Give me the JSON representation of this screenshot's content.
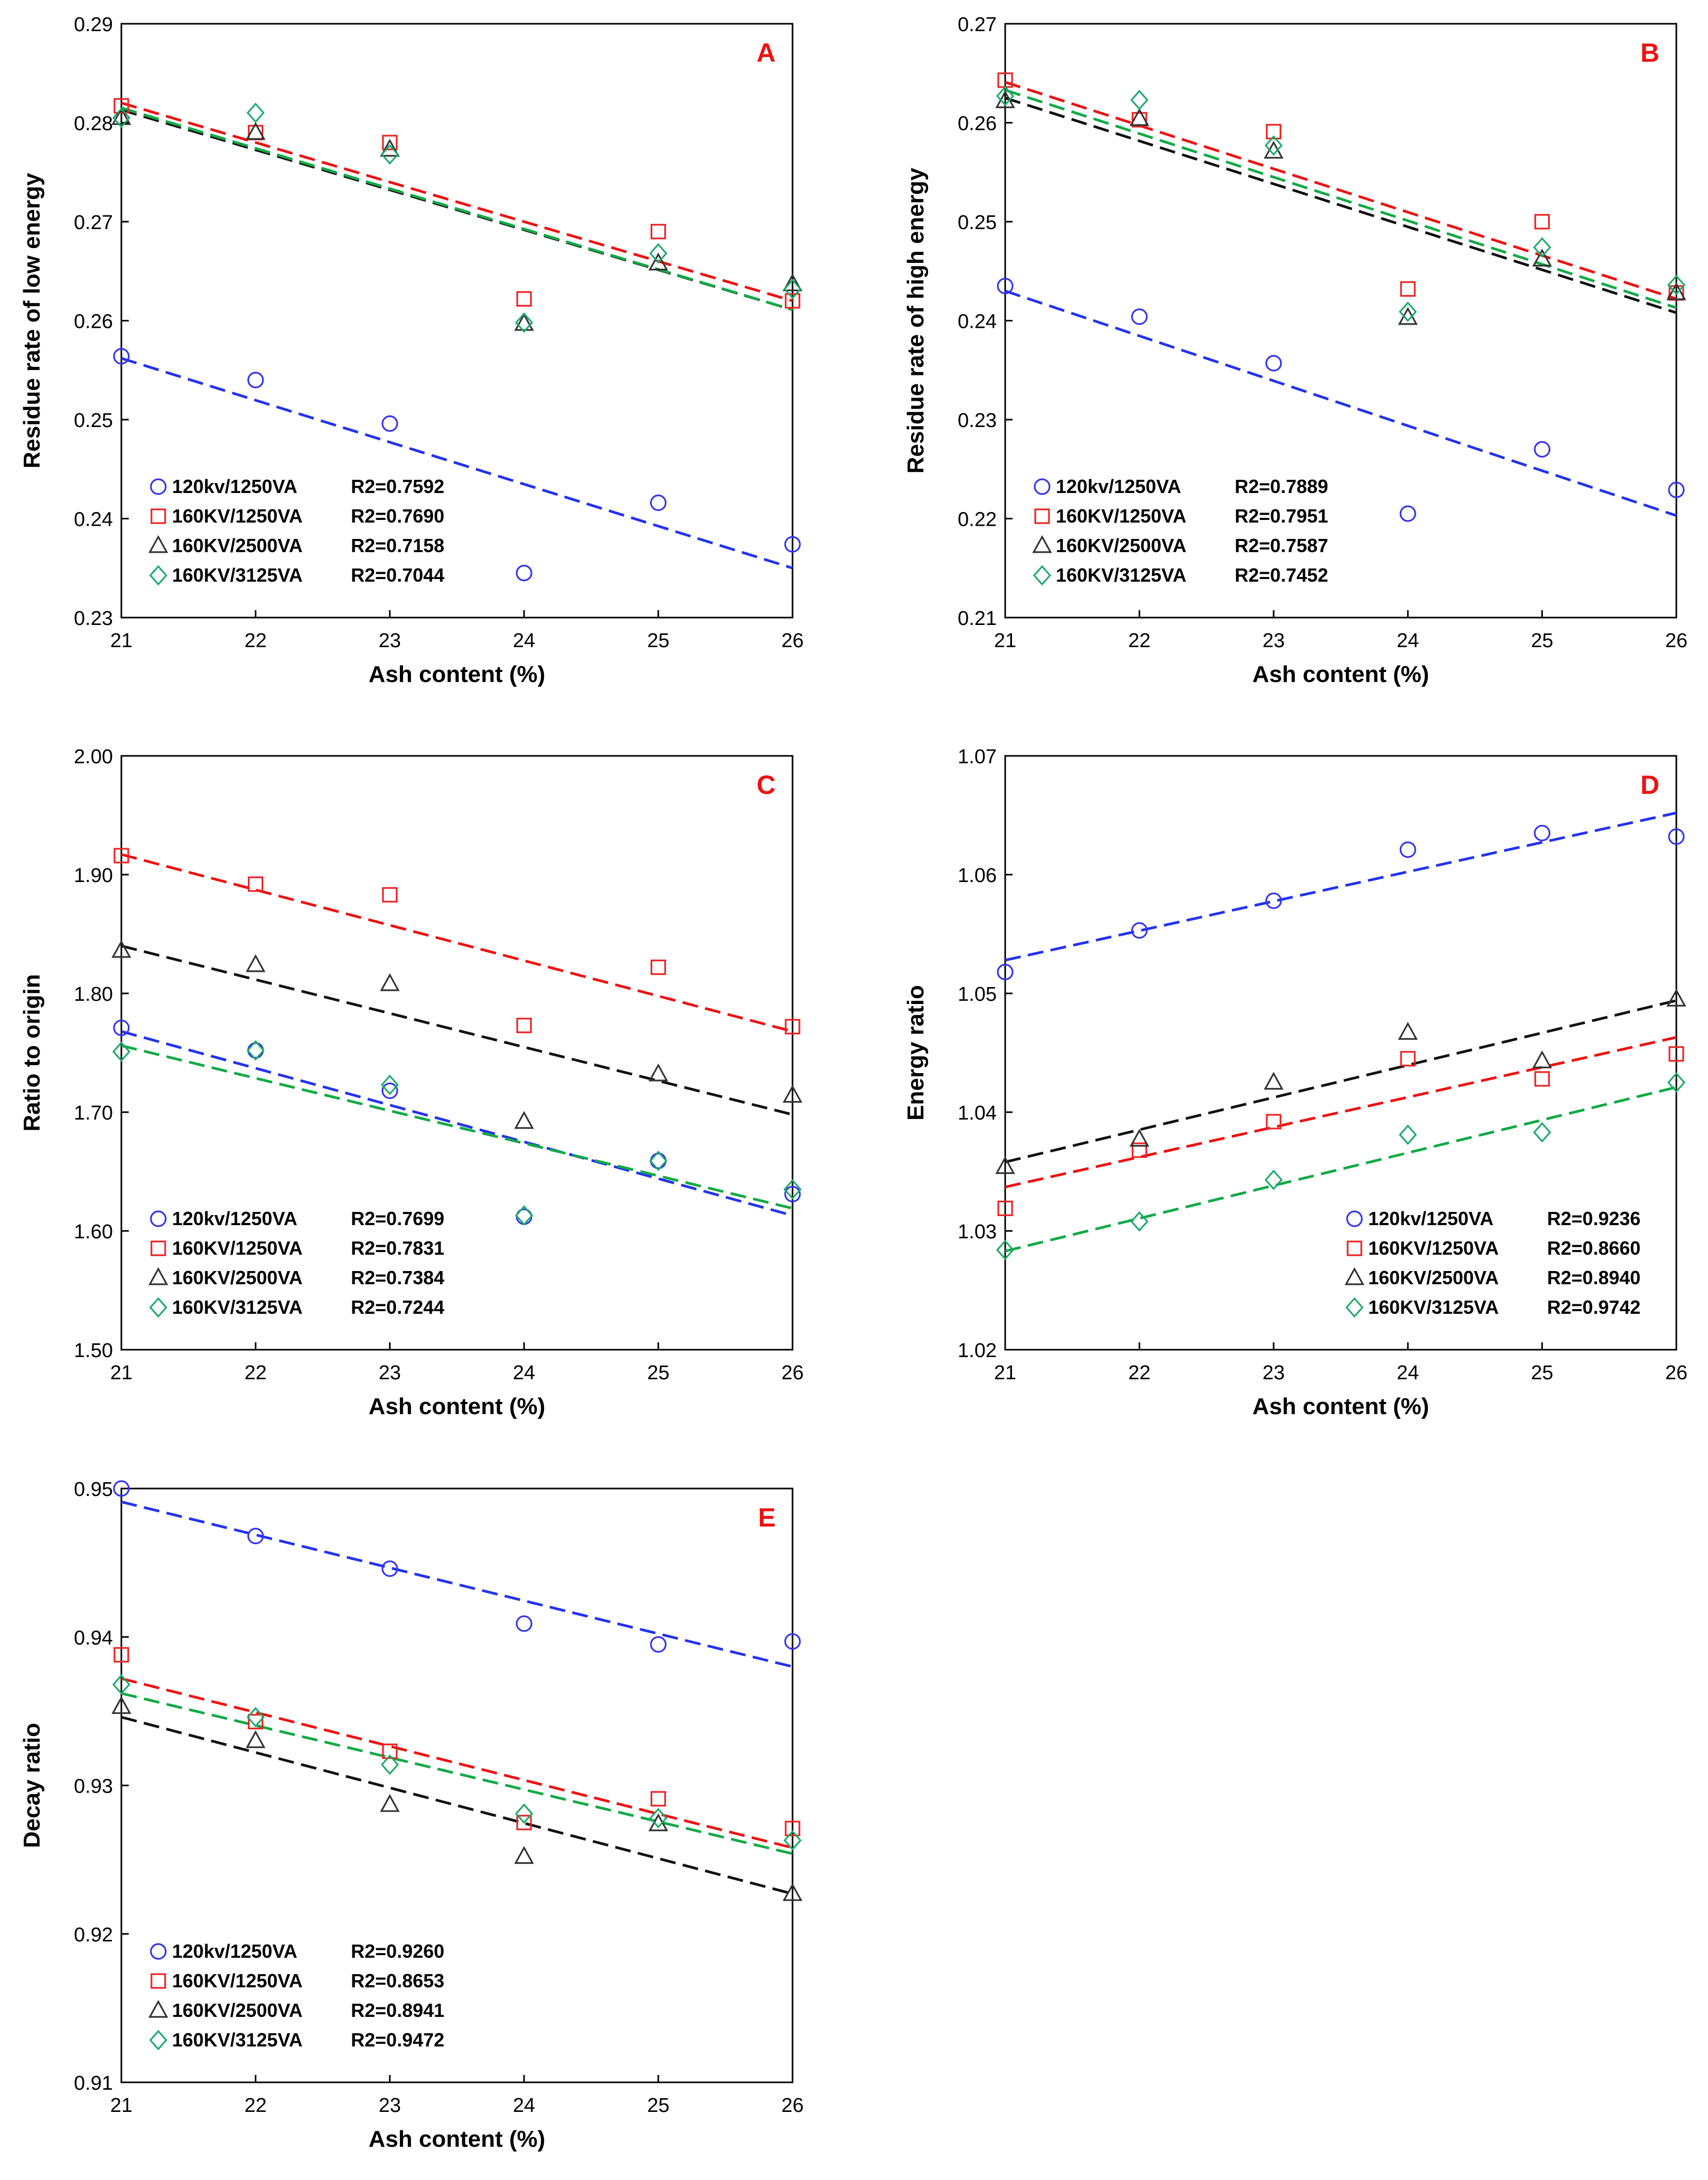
{
  "series_styles": [
    {
      "name": "120kv/1250VA",
      "color": "#3333ee",
      "marker": "circle"
    },
    {
      "name": "160KV/1250VA",
      "color": "#ee2222",
      "marker": "square"
    },
    {
      "name": "160KV/2500VA",
      "color": "#333333",
      "marker": "triangle"
    },
    {
      "name": "160KV/3125VA",
      "color": "#1aaa6a",
      "marker": "diamond"
    }
  ],
  "fit_line_colors": [
    "#2233ee",
    "#ee1111",
    "#111111",
    "#11aa44"
  ],
  "panel_letter_color": "#ee1111",
  "chart_data": [
    {
      "type": "scatter",
      "label": "A",
      "title": "",
      "xlabel": "Ash content (%)",
      "ylabel": "Residue rate of low energy",
      "xlim": [
        21,
        26
      ],
      "ylim": [
        0.23,
        0.29
      ],
      "xticks": [
        "21",
        "22",
        "23",
        "24",
        "25",
        "26"
      ],
      "yticks": [
        "0.23",
        "0.24",
        "0.25",
        "0.26",
        "0.27",
        "0.28",
        "0.29"
      ],
      "x": [
        21,
        22,
        23,
        24,
        25,
        26
      ],
      "legend_position": "bottom-left",
      "series": [
        {
          "name": "120kv/1250VA",
          "values": [
            0.2564,
            0.254,
            0.2496,
            0.2345,
            0.2416,
            0.2374
          ],
          "fit": [
            0.2562,
            0.235
          ],
          "r2": "R2=0.7592"
        },
        {
          "name": "160KV/1250VA",
          "values": [
            0.2817,
            0.279,
            0.278,
            0.2622,
            0.269,
            0.262
          ],
          "fit": [
            0.282,
            0.262
          ],
          "r2": "R2=0.7690"
        },
        {
          "name": "160KV/2500VA",
          "values": [
            0.2805,
            0.279,
            0.2773,
            0.2597,
            0.2658,
            0.2637
          ],
          "fit": [
            0.2813,
            0.2611
          ],
          "r2": "R2=0.7158"
        },
        {
          "name": "160KV/3125VA",
          "values": [
            0.2805,
            0.281,
            0.2768,
            0.2598,
            0.2668,
            0.2632
          ],
          "fit": [
            0.2815,
            0.2611
          ],
          "r2": "R2=0.7044"
        }
      ]
    },
    {
      "type": "scatter",
      "label": "B",
      "title": "",
      "xlabel": "Ash content (%)",
      "ylabel": "Residue rate of high energy",
      "xlim": [
        21,
        26
      ],
      "ylim": [
        0.21,
        0.27
      ],
      "xticks": [
        "21",
        "22",
        "23",
        "24",
        "25",
        "26"
      ],
      "yticks": [
        "0.21",
        "0.22",
        "0.23",
        "0.24",
        "0.25",
        "0.26",
        "0.27"
      ],
      "x": [
        21,
        22,
        23,
        24,
        25,
        26
      ],
      "legend_position": "bottom-left",
      "series": [
        {
          "name": "120kv/1250VA",
          "values": [
            0.2435,
            0.2404,
            0.2357,
            0.2205,
            0.227,
            0.2229
          ],
          "fit": [
            0.243,
            0.2203
          ],
          "r2": "R2=0.7889"
        },
        {
          "name": "160KV/1250VA",
          "values": [
            0.2643,
            0.2603,
            0.2591,
            0.2432,
            0.25,
            0.2428
          ],
          "fit": [
            0.2641,
            0.2422
          ],
          "r2": "R2=0.7951"
        },
        {
          "name": "160KV/2500VA",
          "values": [
            0.2622,
            0.2604,
            0.2571,
            0.2403,
            0.2462,
            0.2428
          ],
          "fit": [
            0.2625,
            0.2408
          ],
          "r2": "R2=0.7587"
        },
        {
          "name": "160KV/3125VA",
          "values": [
            0.2627,
            0.2623,
            0.2577,
            0.2409,
            0.2474,
            0.2436
          ],
          "fit": [
            0.2633,
            0.2413
          ],
          "r2": "R2=0.7452"
        }
      ]
    },
    {
      "type": "scatter",
      "label": "C",
      "title": "",
      "xlabel": "Ash content (%)",
      "ylabel": "Ratio to origin",
      "xlim": [
        21,
        26
      ],
      "ylim": [
        1.5,
        2.0
      ],
      "xticks": [
        "21",
        "22",
        "23",
        "24",
        "25",
        "26"
      ],
      "yticks": [
        "1.50",
        "1.60",
        "1.70",
        "1.80",
        "1.90",
        "2.00"
      ],
      "x": [
        21,
        22,
        23,
        24,
        25,
        26
      ],
      "legend_position": "bottom-left",
      "series": [
        {
          "name": "120kv/1250VA",
          "values": [
            1.771,
            1.752,
            1.718,
            1.612,
            1.659,
            1.631
          ],
          "fit": [
            1.768,
            1.613
          ],
          "r2": "R2=0.7699"
        },
        {
          "name": "160KV/1250VA",
          "values": [
            1.916,
            1.892,
            1.883,
            1.773,
            1.822,
            1.772
          ],
          "fit": [
            1.917,
            1.768
          ],
          "r2": "R2=0.7831"
        },
        {
          "name": "160KV/2500VA",
          "values": [
            1.836,
            1.824,
            1.808,
            1.692,
            1.732,
            1.714
          ],
          "fit": [
            1.84,
            1.698
          ],
          "r2": "R2=0.7384"
        },
        {
          "name": "160KV/3125VA",
          "values": [
            1.751,
            1.752,
            1.723,
            1.613,
            1.659,
            1.635
          ],
          "fit": [
            1.756,
            1.619
          ],
          "r2": "R2=0.7244"
        }
      ]
    },
    {
      "type": "scatter",
      "label": "D",
      "title": "",
      "xlabel": "Ash content (%)",
      "ylabel": "Energy ratio",
      "xlim": [
        21,
        26
      ],
      "ylim": [
        1.02,
        1.07
      ],
      "xticks": [
        "21",
        "22",
        "23",
        "24",
        "25",
        "26"
      ],
      "yticks": [
        "1.02",
        "1.03",
        "1.04",
        "1.05",
        "1.06",
        "1.07"
      ],
      "x": [
        21,
        22,
        23,
        24,
        25,
        26
      ],
      "legend_position": "bottom-right",
      "series": [
        {
          "name": "120kv/1250VA",
          "values": [
            1.0518,
            1.0553,
            1.0578,
            1.0621,
            1.0635,
            1.0632
          ],
          "fit": [
            1.0528,
            1.0652
          ],
          "r2": "R2=0.9236"
        },
        {
          "name": "160KV/1250VA",
          "values": [
            1.0319,
            1.0368,
            1.0392,
            1.0445,
            1.0428,
            1.0449
          ],
          "fit": [
            1.0337,
            1.0463
          ],
          "r2": "R2=0.8660"
        },
        {
          "name": "160KV/2500VA",
          "values": [
            1.0354,
            1.0377,
            1.0425,
            1.0467,
            1.0443,
            1.0495
          ],
          "fit": [
            1.0358,
            1.0494
          ],
          "r2": "R2=0.8940"
        },
        {
          "name": "160KV/3125VA",
          "values": [
            1.0284,
            1.0308,
            1.0343,
            1.0381,
            1.0383,
            1.0425
          ],
          "fit": [
            1.0283,
            1.0421
          ],
          "r2": "R2=0.9742"
        }
      ]
    },
    {
      "type": "scatter",
      "label": "E",
      "title": "",
      "xlabel": "Ash content (%)",
      "ylabel": "Decay ratio",
      "xlim": [
        21,
        26
      ],
      "ylim": [
        0.91,
        0.95
      ],
      "xticks": [
        "21",
        "22",
        "23",
        "24",
        "25",
        "26"
      ],
      "yticks": [
        "0.91",
        "0.92",
        "0.93",
        "0.94",
        "0.95"
      ],
      "x": [
        21,
        22,
        23,
        24,
        25,
        26
      ],
      "legend_position": "bottom-left",
      "series": [
        {
          "name": "120kv/1250VA",
          "values": [
            0.95,
            0.9468,
            0.9446,
            0.9409,
            0.9395,
            0.9397
          ],
          "fit": [
            0.9491,
            0.938
          ],
          "r2": "R2=0.9260"
        },
        {
          "name": "160KV/1250VA",
          "values": [
            0.9388,
            0.9343,
            0.9323,
            0.9275,
            0.9291,
            0.9271
          ],
          "fit": [
            0.9372,
            0.9258
          ],
          "r2": "R2=0.8653"
        },
        {
          "name": "160KV/2500VA",
          "values": [
            0.9353,
            0.933,
            0.9287,
            0.9252,
            0.9274,
            0.9227
          ],
          "fit": [
            0.9346,
            0.9227
          ],
          "r2": "R2=0.8941"
        },
        {
          "name": "160KV/3125VA",
          "values": [
            0.9368,
            0.9346,
            0.9314,
            0.9281,
            0.9278,
            0.9263
          ],
          "fit": [
            0.9362,
            0.9254
          ],
          "r2": "R2=0.9472"
        }
      ]
    }
  ]
}
